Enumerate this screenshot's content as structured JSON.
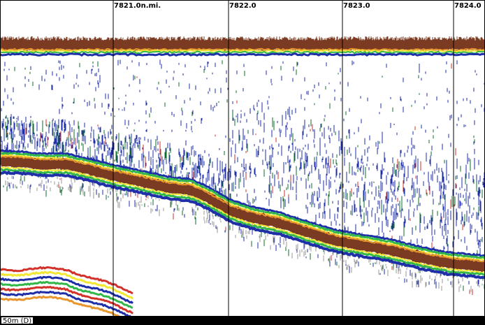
{
  "distance_markers": [
    "7821.0n.mi.",
    "7822.0",
    "7823.0",
    "7824.0"
  ],
  "range_label": "50m (D)",
  "colors": {
    "background": "#ffffff",
    "frame": "#000000",
    "echo_scale": [
      "#1e2fa8",
      "#0d6e2a",
      "#32b84a",
      "#f2e733",
      "#e8952b",
      "#d2322a",
      "#7a3b22"
    ]
  }
}
